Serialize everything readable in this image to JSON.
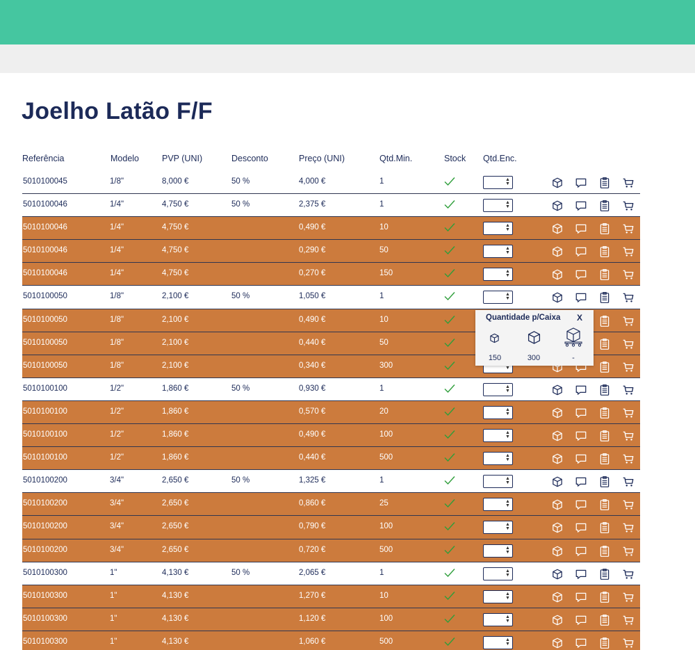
{
  "page": {
    "title": "Joelho Latão F/F"
  },
  "table": {
    "headers": {
      "ref": "Referência",
      "model": "Modelo",
      "pvp": "PVP (UNI)",
      "discount": "Desconto",
      "price": "Preço (UNI)",
      "min_qty": "Qtd.Min.",
      "stock": "Stock",
      "order_qty": "Qtd.Enc."
    },
    "rows": [
      {
        "ref": "5010100045",
        "model": "1/8\"",
        "pvp": "8,000 €",
        "discount": "50 %",
        "price": "4,000 €",
        "min_qty": "1",
        "tier": false
      },
      {
        "ref": "5010100046",
        "model": "1/4\"",
        "pvp": "4,750 €",
        "discount": "50 %",
        "price": "2,375 €",
        "min_qty": "1",
        "tier": false
      },
      {
        "ref": "5010100046",
        "model": "1/4\"",
        "pvp": "4,750 €",
        "discount": "",
        "price": "0,490 €",
        "min_qty": "10",
        "tier": true
      },
      {
        "ref": "5010100046",
        "model": "1/4\"",
        "pvp": "4,750 €",
        "discount": "",
        "price": "0,290 €",
        "min_qty": "50",
        "tier": true
      },
      {
        "ref": "5010100046",
        "model": "1/4\"",
        "pvp": "4,750 €",
        "discount": "",
        "price": "0,270 €",
        "min_qty": "150",
        "tier": true
      },
      {
        "ref": "5010100050",
        "model": "1/8\"",
        "pvp": "2,100 €",
        "discount": "50 %",
        "price": "1,050 €",
        "min_qty": "1",
        "tier": false
      },
      {
        "ref": "5010100050",
        "model": "1/8\"",
        "pvp": "2,100 €",
        "discount": "",
        "price": "0,490 €",
        "min_qty": "10",
        "tier": true
      },
      {
        "ref": "5010100050",
        "model": "1/8\"",
        "pvp": "2,100 €",
        "discount": "",
        "price": "0,440 €",
        "min_qty": "50",
        "tier": true
      },
      {
        "ref": "5010100050",
        "model": "1/8\"",
        "pvp": "2,100 €",
        "discount": "",
        "price": "0,340 €",
        "min_qty": "300",
        "tier": true
      },
      {
        "ref": "5010100100",
        "model": "1/2\"",
        "pvp": "1,860 €",
        "discount": "50 %",
        "price": "0,930 €",
        "min_qty": "1",
        "tier": false
      },
      {
        "ref": "5010100100",
        "model": "1/2\"",
        "pvp": "1,860 €",
        "discount": "",
        "price": "0,570 €",
        "min_qty": "20",
        "tier": true
      },
      {
        "ref": "5010100100",
        "model": "1/2\"",
        "pvp": "1,860 €",
        "discount": "",
        "price": "0,490 €",
        "min_qty": "100",
        "tier": true
      },
      {
        "ref": "5010100100",
        "model": "1/2\"",
        "pvp": "1,860 €",
        "discount": "",
        "price": "0,440 €",
        "min_qty": "500",
        "tier": true
      },
      {
        "ref": "5010100200",
        "model": "3/4\"",
        "pvp": "2,650 €",
        "discount": "50 %",
        "price": "1,325 €",
        "min_qty": "1",
        "tier": false
      },
      {
        "ref": "5010100200",
        "model": "3/4\"",
        "pvp": "2,650 €",
        "discount": "",
        "price": "0,860 €",
        "min_qty": "25",
        "tier": true
      },
      {
        "ref": "5010100200",
        "model": "3/4\"",
        "pvp": "2,650 €",
        "discount": "",
        "price": "0,790 €",
        "min_qty": "100",
        "tier": true
      },
      {
        "ref": "5010100200",
        "model": "3/4\"",
        "pvp": "2,650 €",
        "discount": "",
        "price": "0,720 €",
        "min_qty": "500",
        "tier": true
      },
      {
        "ref": "5010100300",
        "model": "1\"",
        "pvp": "4,130 €",
        "discount": "50 %",
        "price": "2,065 €",
        "min_qty": "1",
        "tier": false
      },
      {
        "ref": "5010100300",
        "model": "1\"",
        "pvp": "4,130 €",
        "discount": "",
        "price": "1,270 €",
        "min_qty": "10",
        "tier": true
      },
      {
        "ref": "5010100300",
        "model": "1\"",
        "pvp": "4,130 €",
        "discount": "",
        "price": "1,120 €",
        "min_qty": "100",
        "tier": true
      },
      {
        "ref": "5010100300",
        "model": "1\"",
        "pvp": "4,130 €",
        "discount": "",
        "price": "1,060 €",
        "min_qty": "500",
        "tier": true
      }
    ]
  },
  "popup": {
    "title": "Quantidade p/Caixa",
    "close_label": "X",
    "values": [
      "150",
      "300",
      "-"
    ]
  },
  "icons": {
    "stock": "check-icon",
    "row_actions": [
      "box-icon",
      "message-icon",
      "clipboard-icon",
      "cart-icon"
    ]
  },
  "colors": {
    "header_bar": "#45c6a0",
    "tier_row": "#cc7b3d",
    "text": "#1c2a58",
    "check": "#2e9e3a"
  }
}
